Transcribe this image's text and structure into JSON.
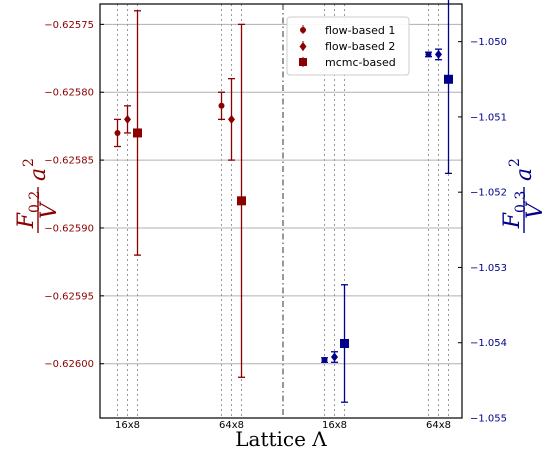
{
  "chart_data": {
    "type": "scatter",
    "xlabel": "Lattice Λ",
    "x_tick_labels": [
      "16x8",
      "64x8",
      "16x8",
      "64x8"
    ],
    "left_axis": {
      "ylabel_main": "F",
      "ylabel_sub": "0.2",
      "ylabel_den": "V",
      "ylabel_tail": "a",
      "ylabel_exp": "2",
      "ylim": [
        -0.62604,
        -0.625735
      ],
      "ticks": [
        -0.62575,
        -0.6258,
        -0.62585,
        -0.6259,
        -0.62595,
        -0.626
      ],
      "tick_labels": [
        "−0.62575",
        "−0.62580",
        "−0.62585",
        "−0.62590",
        "−0.62595",
        "−0.62600"
      ]
    },
    "right_axis": {
      "ylabel_main": "F",
      "ylabel_sub": "0.3",
      "ylabel_den": "V",
      "ylabel_tail": "a",
      "ylabel_exp": "2",
      "ylim": [
        -1.055,
        -1.0495
      ],
      "ticks": [
        -1.05,
        -1.051,
        -1.052,
        -1.053,
        -1.054,
        -1.055
      ],
      "tick_labels": [
        "−1.050",
        "−1.051",
        "−1.052",
        "−1.053",
        "−1.054",
        "−1.055"
      ]
    },
    "legend": {
      "placement": "top-center",
      "entries": [
        {
          "label": "flow-based 1",
          "marker": "circle"
        },
        {
          "label": "flow-based 2",
          "marker": "diamond"
        },
        {
          "label": "mcmc-based",
          "marker": "square"
        }
      ]
    },
    "series": [
      {
        "name": "flow-based 1",
        "marker": "circle",
        "axis": "left",
        "color": "#8b0000",
        "points": [
          {
            "lattice": "16x8",
            "y": -0.62583,
            "err": 1e-05
          },
          {
            "lattice": "64x8",
            "y": -0.62581,
            "err": 1e-05
          }
        ]
      },
      {
        "name": "flow-based 2",
        "marker": "diamond",
        "axis": "left",
        "color": "#8b0000",
        "points": [
          {
            "lattice": "16x8",
            "y": -0.62582,
            "err": 1e-05
          },
          {
            "lattice": "64x8",
            "y": -0.62582,
            "err": 3e-05
          }
        ]
      },
      {
        "name": "mcmc-based",
        "marker": "square",
        "axis": "left",
        "color": "#8b0000",
        "points": [
          {
            "lattice": "16x8",
            "y": -0.62583,
            "err": 9e-05
          },
          {
            "lattice": "64x8",
            "y": -0.62588,
            "err": 0.00013
          }
        ]
      },
      {
        "name": "flow-based 1",
        "marker": "circle",
        "axis": "right",
        "color": "#00008b",
        "points": [
          {
            "lattice": "16x8",
            "y": -1.05423,
            "err": 3e-05
          },
          {
            "lattice": "64x8",
            "y": -1.05017,
            "err": 3e-05
          }
        ]
      },
      {
        "name": "flow-based 2",
        "marker": "diamond",
        "axis": "right",
        "color": "#00008b",
        "points": [
          {
            "lattice": "16x8",
            "y": -1.05419,
            "err": 7e-05
          },
          {
            "lattice": "64x8",
            "y": -1.05017,
            "err": 7e-05
          }
        ]
      },
      {
        "name": "mcmc-based",
        "marker": "square",
        "axis": "right",
        "color": "#00008b",
        "points": [
          {
            "lattice": "16x8",
            "y": -1.05401,
            "err": 0.00078
          },
          {
            "lattice": "64x8",
            "y": -1.0505,
            "err": 0.00125
          }
        ]
      }
    ],
    "grid": "horizontal"
  }
}
